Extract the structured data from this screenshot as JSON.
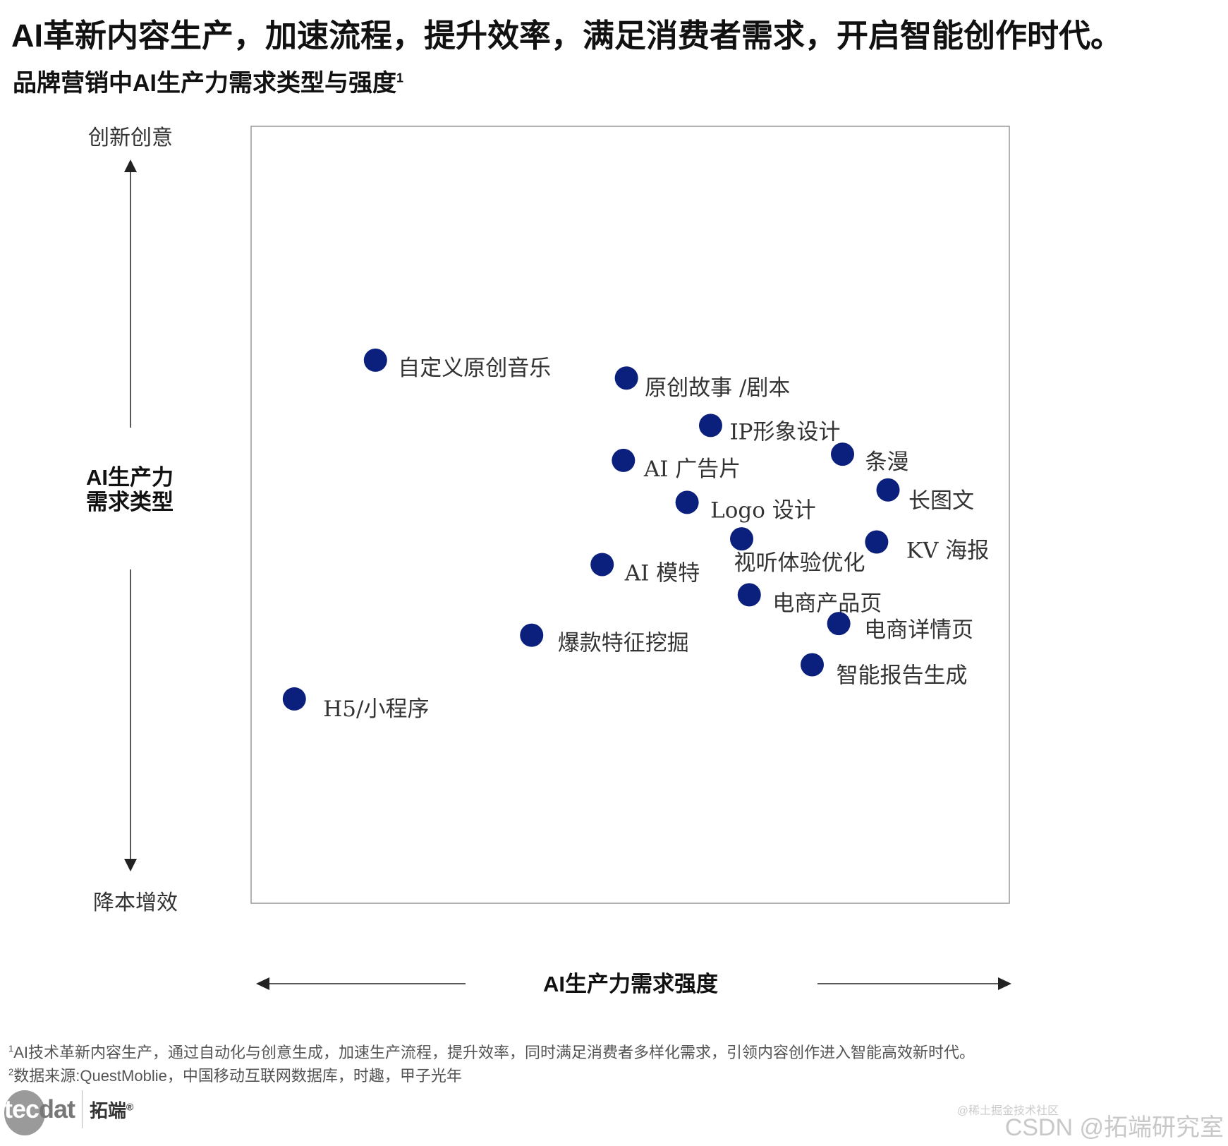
{
  "header": {
    "title": "AI革新内容生产，加速流程，提升效率，满足消费者需求，开启智能创作时代。",
    "subtitle": "品牌营销中AI生产力需求类型与强度",
    "subtitle_sup": "1"
  },
  "chart_data": {
    "type": "scatter",
    "title": "品牌营销中AI生产力需求类型与强度",
    "xlabel": "AI生产力需求强度",
    "ylabel": "AI生产力需求类型",
    "ylabel_line1": "AI生产力",
    "ylabel_line2": "需求类型",
    "y_top_label": "创新创意",
    "y_bottom_label": "降本增效",
    "xlim": [
      0,
      100
    ],
    "ylim": [
      0,
      100
    ],
    "grid": false,
    "point_color": "#0b1f7c",
    "points": [
      {
        "label": "自定义原创音乐",
        "x": 16.4,
        "y": 69.9
      },
      {
        "label": "原创故事 /剧本",
        "x": 49.5,
        "y": 67.6
      },
      {
        "label": "IP形象设计",
        "x": 60.6,
        "y": 61.5
      },
      {
        "label": "条漫",
        "x": 78.0,
        "y": 57.8
      },
      {
        "label": "AI 广告片",
        "x": 49.1,
        "y": 57.0
      },
      {
        "label": "长图文",
        "x": 84.0,
        "y": 53.2
      },
      {
        "label": "Logo  设计",
        "x": 57.5,
        "y": 51.6
      },
      {
        "label": "视听体验优化",
        "x": 64.7,
        "y": 46.9
      },
      {
        "label": "KV 海报",
        "x": 82.5,
        "y": 46.5
      },
      {
        "label": "AI 模特",
        "x": 46.3,
        "y": 43.6
      },
      {
        "label": "电商产品页",
        "x": 65.7,
        "y": 39.7
      },
      {
        "label": "电商详情页",
        "x": 77.5,
        "y": 36.0
      },
      {
        "label": "爆款特征挖掘",
        "x": 37.0,
        "y": 34.5
      },
      {
        "label": "智能报告生成",
        "x": 74.0,
        "y": 30.7
      },
      {
        "label": "H5/小程序",
        "x": 5.7,
        "y": 26.3
      }
    ]
  },
  "footnotes": [
    {
      "sup": "1",
      "text": "AI技术革新内容生产，通过自动化与创意生成，加速生产流程，提升效率，同时满足消费者多样化需求，引领内容创作进入智能高效新时代。"
    },
    {
      "sup": "2",
      "text": "数据来源:QuestMoblie，中国移动互联网数据库，时趣，甲子光年"
    }
  ],
  "logo": {
    "text_light": "tec",
    "text_dark": "dat",
    "cn": "拓端",
    "reg": "®"
  },
  "watermark": {
    "main": "CSDN @拓端研究室",
    "small": "@稀土掘金技术社区"
  }
}
